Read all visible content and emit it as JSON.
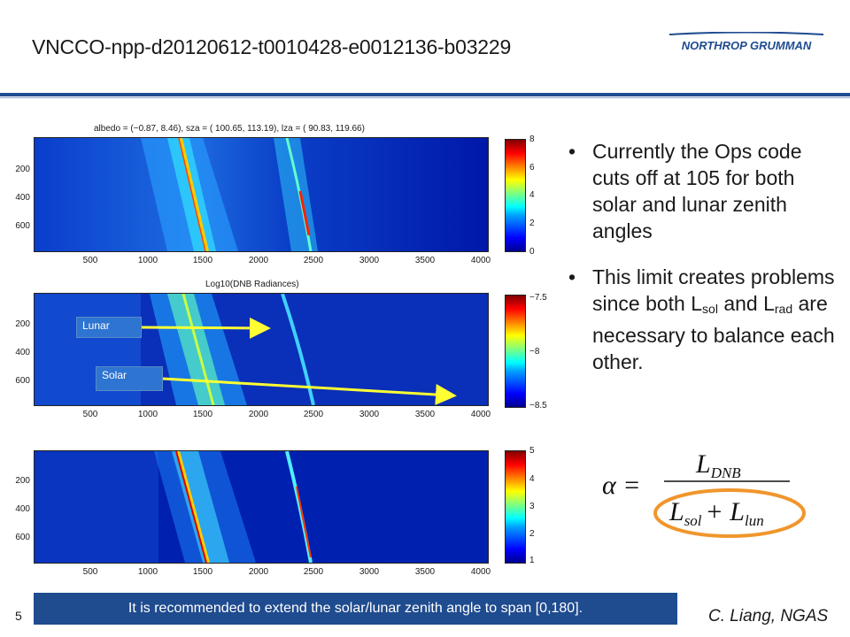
{
  "slide": {
    "title": "VNCCO-npp-d20120612-t0010428-e0012136-b03229",
    "logo_text": "NORTHROP GRUMMAN",
    "page_number": "5",
    "author": "C. Liang, NGAS",
    "recommendation": "It is recommended to extend the solar/lunar zenith angle to span [0,180].",
    "colors": {
      "accent_blue": "#1f4b8f",
      "callout_blue": "#2e75d1",
      "arrow_yellow": "#ffff33",
      "highlight_orange": "#f0962c"
    }
  },
  "panels": [
    {
      "title": "albedo = (−0.87, 8.46), sza = ( 100.65, 113.19), lza = (  90.83,  119.66)",
      "yticks": [
        "200",
        "400",
        "600"
      ],
      "xticks": [
        "500",
        "1000",
        "1500",
        "2000",
        "2500",
        "3000",
        "3500",
        "4000"
      ],
      "cbar_ticks": [
        "8",
        "6",
        "4",
        "2",
        "0"
      ]
    },
    {
      "title": "Log10(DNB Radiances)",
      "yticks": [
        "200",
        "400",
        "600"
      ],
      "xticks": [
        "500",
        "1000",
        "1500",
        "2000",
        "2500",
        "3000",
        "3500",
        "4000"
      ],
      "cbar_ticks": [
        "−7.5",
        "−8",
        "−8.5"
      ]
    },
    {
      "title": "",
      "yticks": [
        "200",
        "400",
        "600"
      ],
      "xticks": [
        "500",
        "1000",
        "1500",
        "2000",
        "2500",
        "3000",
        "3500",
        "4000"
      ],
      "cbar_ticks": [
        "5",
        "4",
        "3",
        "2",
        "1"
      ]
    }
  ],
  "callouts": {
    "lunar": "Lunar",
    "solar": "Solar"
  },
  "bullets": {
    "b1": "Currently the Ops code cuts off at 105 for both solar and lunar zenith angles",
    "b2_pre": "This limit creates problems since both L",
    "b2_sub1": "sol",
    "b2_mid": " and L",
    "b2_sub2": "rad",
    "b2_post": " are necessary to balance each other."
  },
  "formula": {
    "lhs": "α =",
    "numerator": "L",
    "numerator_sub": "DNB",
    "den_l1": "L",
    "den_sub1": "sol",
    "plus": "+ L",
    "den_sub2": "lun"
  }
}
